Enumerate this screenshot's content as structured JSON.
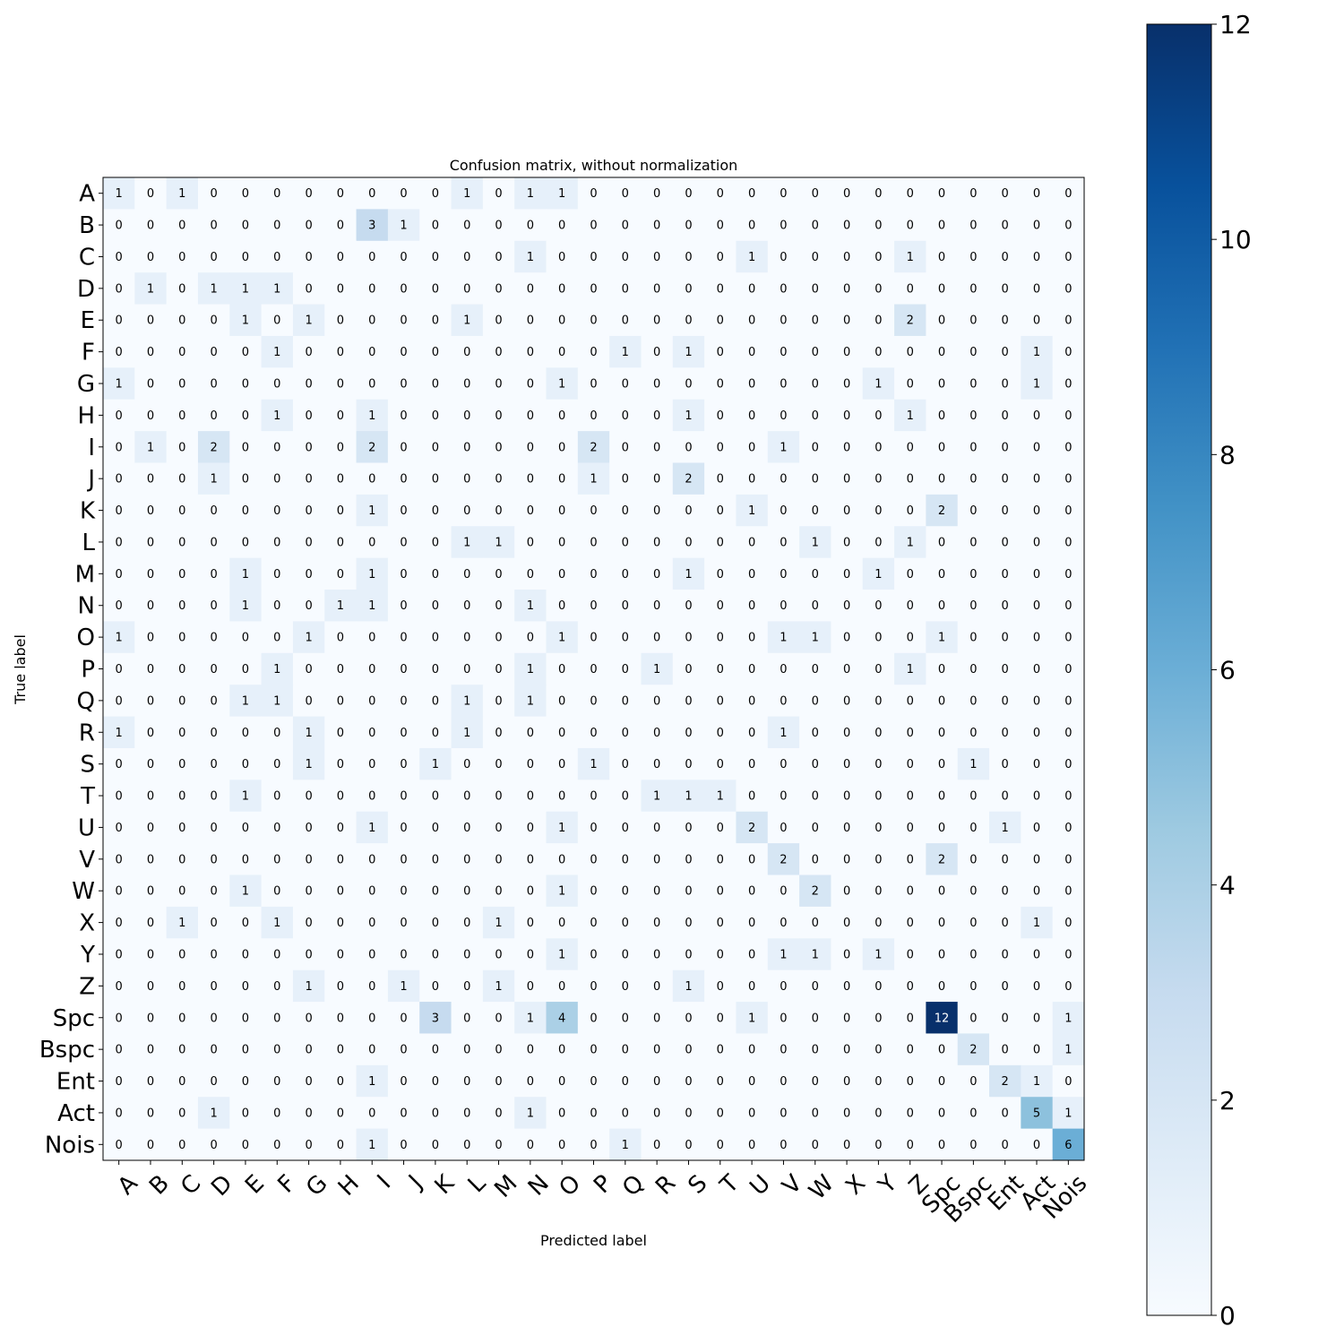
{
  "chart_data": {
    "type": "heatmap",
    "title": "Confusion matrix, without normalization",
    "xlabel": "Predicted label",
    "ylabel": "True label",
    "labels": [
      "A",
      "B",
      "C",
      "D",
      "E",
      "F",
      "G",
      "H",
      "I",
      "J",
      "K",
      "L",
      "M",
      "N",
      "O",
      "P",
      "Q",
      "R",
      "S",
      "T",
      "U",
      "V",
      "W",
      "X",
      "Y",
      "Z",
      "Spc",
      "Bspc",
      "Ent",
      "Act",
      "Nois"
    ],
    "matrix": [
      [
        1,
        0,
        1,
        0,
        0,
        0,
        0,
        0,
        0,
        0,
        0,
        1,
        0,
        1,
        1,
        0,
        0,
        0,
        0,
        0,
        0,
        0,
        0,
        0,
        0,
        0,
        0,
        0,
        0,
        0,
        0
      ],
      [
        0,
        0,
        0,
        0,
        0,
        0,
        0,
        0,
        3,
        1,
        0,
        0,
        0,
        0,
        0,
        0,
        0,
        0,
        0,
        0,
        0,
        0,
        0,
        0,
        0,
        0,
        0,
        0,
        0,
        0,
        0
      ],
      [
        0,
        0,
        0,
        0,
        0,
        0,
        0,
        0,
        0,
        0,
        0,
        0,
        0,
        1,
        0,
        0,
        0,
        0,
        0,
        0,
        1,
        0,
        0,
        0,
        0,
        1,
        0,
        0,
        0,
        0,
        0
      ],
      [
        0,
        1,
        0,
        1,
        1,
        1,
        0,
        0,
        0,
        0,
        0,
        0,
        0,
        0,
        0,
        0,
        0,
        0,
        0,
        0,
        0,
        0,
        0,
        0,
        0,
        0,
        0,
        0,
        0,
        0,
        0
      ],
      [
        0,
        0,
        0,
        0,
        1,
        0,
        1,
        0,
        0,
        0,
        0,
        1,
        0,
        0,
        0,
        0,
        0,
        0,
        0,
        0,
        0,
        0,
        0,
        0,
        0,
        2,
        0,
        0,
        0,
        0,
        0
      ],
      [
        0,
        0,
        0,
        0,
        0,
        1,
        0,
        0,
        0,
        0,
        0,
        0,
        0,
        0,
        0,
        0,
        1,
        0,
        1,
        0,
        0,
        0,
        0,
        0,
        0,
        0,
        0,
        0,
        0,
        1,
        0
      ],
      [
        1,
        0,
        0,
        0,
        0,
        0,
        0,
        0,
        0,
        0,
        0,
        0,
        0,
        0,
        1,
        0,
        0,
        0,
        0,
        0,
        0,
        0,
        0,
        0,
        1,
        0,
        0,
        0,
        0,
        1,
        0
      ],
      [
        0,
        0,
        0,
        0,
        0,
        1,
        0,
        0,
        1,
        0,
        0,
        0,
        0,
        0,
        0,
        0,
        0,
        0,
        1,
        0,
        0,
        0,
        0,
        0,
        0,
        1,
        0,
        0,
        0,
        0,
        0
      ],
      [
        0,
        1,
        0,
        2,
        0,
        0,
        0,
        0,
        2,
        0,
        0,
        0,
        0,
        0,
        0,
        2,
        0,
        0,
        0,
        0,
        0,
        1,
        0,
        0,
        0,
        0,
        0,
        0,
        0,
        0,
        0
      ],
      [
        0,
        0,
        0,
        1,
        0,
        0,
        0,
        0,
        0,
        0,
        0,
        0,
        0,
        0,
        0,
        1,
        0,
        0,
        2,
        0,
        0,
        0,
        0,
        0,
        0,
        0,
        0,
        0,
        0,
        0,
        0
      ],
      [
        0,
        0,
        0,
        0,
        0,
        0,
        0,
        0,
        1,
        0,
        0,
        0,
        0,
        0,
        0,
        0,
        0,
        0,
        0,
        0,
        1,
        0,
        0,
        0,
        0,
        0,
        2,
        0,
        0,
        0,
        0
      ],
      [
        0,
        0,
        0,
        0,
        0,
        0,
        0,
        0,
        0,
        0,
        0,
        1,
        1,
        0,
        0,
        0,
        0,
        0,
        0,
        0,
        0,
        0,
        1,
        0,
        0,
        1,
        0,
        0,
        0,
        0,
        0
      ],
      [
        0,
        0,
        0,
        0,
        1,
        0,
        0,
        0,
        1,
        0,
        0,
        0,
        0,
        0,
        0,
        0,
        0,
        0,
        1,
        0,
        0,
        0,
        0,
        0,
        1,
        0,
        0,
        0,
        0,
        0,
        0
      ],
      [
        0,
        0,
        0,
        0,
        1,
        0,
        0,
        1,
        1,
        0,
        0,
        0,
        0,
        1,
        0,
        0,
        0,
        0,
        0,
        0,
        0,
        0,
        0,
        0,
        0,
        0,
        0,
        0,
        0,
        0,
        0
      ],
      [
        1,
        0,
        0,
        0,
        0,
        0,
        1,
        0,
        0,
        0,
        0,
        0,
        0,
        0,
        1,
        0,
        0,
        0,
        0,
        0,
        0,
        1,
        1,
        0,
        0,
        0,
        1,
        0,
        0,
        0,
        0
      ],
      [
        0,
        0,
        0,
        0,
        0,
        1,
        0,
        0,
        0,
        0,
        0,
        0,
        0,
        1,
        0,
        0,
        0,
        1,
        0,
        0,
        0,
        0,
        0,
        0,
        0,
        1,
        0,
        0,
        0,
        0,
        0
      ],
      [
        0,
        0,
        0,
        0,
        1,
        1,
        0,
        0,
        0,
        0,
        0,
        1,
        0,
        1,
        0,
        0,
        0,
        0,
        0,
        0,
        0,
        0,
        0,
        0,
        0,
        0,
        0,
        0,
        0,
        0,
        0
      ],
      [
        1,
        0,
        0,
        0,
        0,
        0,
        1,
        0,
        0,
        0,
        0,
        1,
        0,
        0,
        0,
        0,
        0,
        0,
        0,
        0,
        0,
        1,
        0,
        0,
        0,
        0,
        0,
        0,
        0,
        0,
        0
      ],
      [
        0,
        0,
        0,
        0,
        0,
        0,
        1,
        0,
        0,
        0,
        1,
        0,
        0,
        0,
        0,
        1,
        0,
        0,
        0,
        0,
        0,
        0,
        0,
        0,
        0,
        0,
        0,
        1,
        0,
        0,
        0
      ],
      [
        0,
        0,
        0,
        0,
        1,
        0,
        0,
        0,
        0,
        0,
        0,
        0,
        0,
        0,
        0,
        0,
        0,
        1,
        1,
        1,
        0,
        0,
        0,
        0,
        0,
        0,
        0,
        0,
        0,
        0,
        0
      ],
      [
        0,
        0,
        0,
        0,
        0,
        0,
        0,
        0,
        1,
        0,
        0,
        0,
        0,
        0,
        1,
        0,
        0,
        0,
        0,
        0,
        2,
        0,
        0,
        0,
        0,
        0,
        0,
        0,
        1,
        0,
        0
      ],
      [
        0,
        0,
        0,
        0,
        0,
        0,
        0,
        0,
        0,
        0,
        0,
        0,
        0,
        0,
        0,
        0,
        0,
        0,
        0,
        0,
        0,
        2,
        0,
        0,
        0,
        0,
        2,
        0,
        0,
        0,
        0
      ],
      [
        0,
        0,
        0,
        0,
        1,
        0,
        0,
        0,
        0,
        0,
        0,
        0,
        0,
        0,
        1,
        0,
        0,
        0,
        0,
        0,
        0,
        0,
        2,
        0,
        0,
        0,
        0,
        0,
        0,
        0,
        0
      ],
      [
        0,
        0,
        1,
        0,
        0,
        1,
        0,
        0,
        0,
        0,
        0,
        0,
        1,
        0,
        0,
        0,
        0,
        0,
        0,
        0,
        0,
        0,
        0,
        0,
        0,
        0,
        0,
        0,
        0,
        1,
        0
      ],
      [
        0,
        0,
        0,
        0,
        0,
        0,
        0,
        0,
        0,
        0,
        0,
        0,
        0,
        0,
        1,
        0,
        0,
        0,
        0,
        0,
        0,
        1,
        1,
        0,
        1,
        0,
        0,
        0,
        0,
        0,
        0
      ],
      [
        0,
        0,
        0,
        0,
        0,
        0,
        1,
        0,
        0,
        1,
        0,
        0,
        1,
        0,
        0,
        0,
        0,
        0,
        1,
        0,
        0,
        0,
        0,
        0,
        0,
        0,
        0,
        0,
        0,
        0,
        0
      ],
      [
        0,
        0,
        0,
        0,
        0,
        0,
        0,
        0,
        0,
        0,
        3,
        0,
        0,
        1,
        4,
        0,
        0,
        0,
        0,
        0,
        1,
        0,
        0,
        0,
        0,
        0,
        12,
        0,
        0,
        0,
        1
      ],
      [
        0,
        0,
        0,
        0,
        0,
        0,
        0,
        0,
        0,
        0,
        0,
        0,
        0,
        0,
        0,
        0,
        0,
        0,
        0,
        0,
        0,
        0,
        0,
        0,
        0,
        0,
        0,
        2,
        0,
        0,
        1
      ],
      [
        0,
        0,
        0,
        0,
        0,
        0,
        0,
        0,
        1,
        0,
        0,
        0,
        0,
        0,
        0,
        0,
        0,
        0,
        0,
        0,
        0,
        0,
        0,
        0,
        0,
        0,
        0,
        0,
        2,
        1,
        0
      ],
      [
        0,
        0,
        0,
        1,
        0,
        0,
        0,
        0,
        0,
        0,
        0,
        0,
        0,
        1,
        0,
        0,
        0,
        0,
        0,
        0,
        0,
        0,
        0,
        0,
        0,
        0,
        0,
        0,
        0,
        5,
        1
      ],
      [
        0,
        0,
        0,
        0,
        0,
        0,
        0,
        0,
        1,
        0,
        0,
        0,
        0,
        0,
        0,
        0,
        1,
        0,
        0,
        0,
        0,
        0,
        0,
        0,
        0,
        0,
        0,
        0,
        0,
        0,
        6
      ]
    ],
    "colorbar": {
      "min": 0,
      "max": 12,
      "ticks": [
        0,
        2,
        4,
        6,
        8,
        10,
        12
      ],
      "colormap": "Blues"
    },
    "grid": false
  }
}
